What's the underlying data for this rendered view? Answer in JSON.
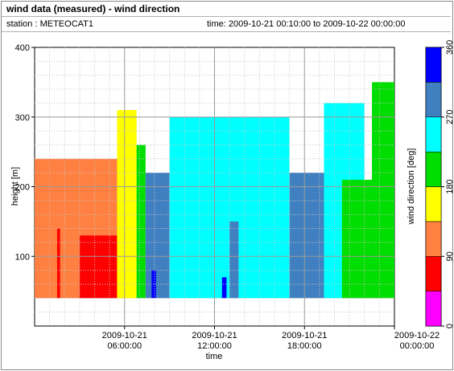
{
  "header": {
    "title": "wind data (measured) - wind direction",
    "station": "station : METEOCAT1",
    "time_range": "time: 2009-10-21 00:10:00 to 2009-10-22 00:00:00"
  },
  "chart_data": {
    "type": "heatmap",
    "title": "wind data (measured) - wind direction",
    "xlabel": "time",
    "ylabel": "height [m]",
    "xlim_hours": [
      0,
      24
    ],
    "ylim": [
      0,
      400
    ],
    "y_ticks": [
      100,
      200,
      300,
      400
    ],
    "x_ticks": [
      {
        "hour": 6,
        "line1": "2009-10-21",
        "line2": "06:00:00"
      },
      {
        "hour": 12,
        "line1": "2009-10-21",
        "line2": "12:00:00"
      },
      {
        "hour": 18,
        "line1": "2009-10-21",
        "line2": "18:00:00"
      },
      {
        "hour": 24,
        "line1": "2009-10-22",
        "line2": "00:00:00"
      }
    ],
    "grid": true,
    "colorbar": {
      "label": "wind direction [deg]",
      "range": [
        0,
        360
      ],
      "ticks": [
        0,
        90,
        180,
        270,
        360
      ],
      "bins": [
        {
          "from": 0,
          "to": 45,
          "color": "#ff00ff"
        },
        {
          "from": 45,
          "to": 90,
          "color": "#ff0000"
        },
        {
          "from": 90,
          "to": 135,
          "color": "#ff8040"
        },
        {
          "from": 135,
          "to": 180,
          "color": "#ffff00"
        },
        {
          "from": 180,
          "to": 225,
          "color": "#00dd00"
        },
        {
          "from": 225,
          "to": 270,
          "color": "#00ffff"
        },
        {
          "from": 270,
          "to": 315,
          "color": "#4080c0"
        },
        {
          "from": 315,
          "to": 360,
          "color": "#0000ff"
        }
      ]
    },
    "data_bottom_m": 40,
    "regions": [
      {
        "t0": 0.0,
        "t1": 6.0,
        "dir": 112,
        "top": 240
      },
      {
        "t0": 3.0,
        "t1": 5.5,
        "dir": 68,
        "top": 130
      },
      {
        "t0": 1.5,
        "t1": 1.7,
        "dir": 68,
        "top": 140
      },
      {
        "t0": 5.5,
        "t1": 6.8,
        "dir": 157,
        "top": 310
      },
      {
        "t0": 6.8,
        "t1": 7.4,
        "dir": 202,
        "top": 260
      },
      {
        "t0": 7.4,
        "t1": 9.0,
        "dir": 292,
        "top": 220
      },
      {
        "t0": 9.0,
        "t1": 17.0,
        "dir": 247,
        "top": 300
      },
      {
        "t0": 17.0,
        "t1": 19.3,
        "dir": 292,
        "top": 220
      },
      {
        "t0": 19.3,
        "t1": 22.0,
        "dir": 247,
        "top": 320
      },
      {
        "t0": 20.5,
        "t1": 23.0,
        "dir": 202,
        "top": 210
      },
      {
        "t0": 22.5,
        "t1": 24.0,
        "dir": 202,
        "top": 350
      },
      {
        "t0": 7.8,
        "t1": 8.1,
        "dir": 337,
        "top": 80
      },
      {
        "t0": 12.5,
        "t1": 12.8,
        "dir": 337,
        "top": 70
      },
      {
        "t0": 13.0,
        "t1": 13.6,
        "dir": 292,
        "top": 150
      }
    ]
  }
}
